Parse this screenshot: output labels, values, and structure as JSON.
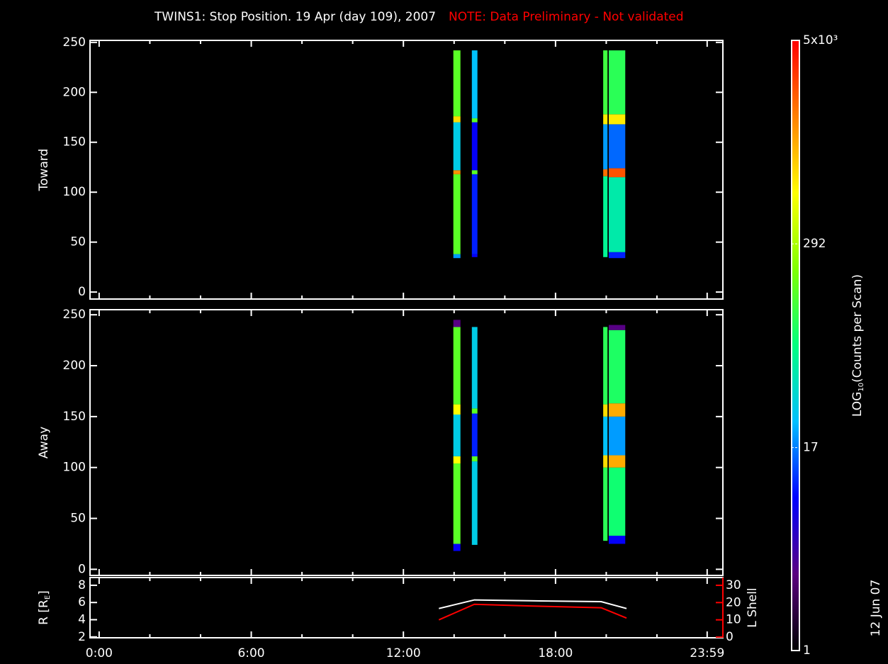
{
  "chart_data": [
    {
      "type": "heatmap",
      "title": "TWINS1: Stop Position. 19 Apr (day 109), 2007",
      "note": "NOTE: Data Preliminary - Not validated",
      "note_color": "#ff0000",
      "ylabel": "Toward",
      "xlim": [
        -0.36,
        24.6
      ],
      "ylim": [
        -7,
        252
      ],
      "yticks": [
        0,
        50,
        100,
        150,
        200,
        250
      ],
      "columns": [
        {
          "x": [
            13.97,
            14.25
          ],
          "cells": [
            {
              "y": [
                34,
                38
              ],
              "value": 20
            },
            {
              "y": [
                38,
                118
              ],
              "value": 150
            },
            {
              "y": [
                118,
                122
              ],
              "value": 1500
            },
            {
              "y": [
                122,
                170
              ],
              "value": 30
            },
            {
              "y": [
                170,
                176
              ],
              "value": 800
            },
            {
              "y": [
                176,
                242
              ],
              "value": 150
            }
          ]
        },
        {
          "x": [
            14.7,
            14.92
          ],
          "cells": [
            {
              "y": [
                35,
                38
              ],
              "value": 8
            },
            {
              "y": [
                38,
                118
              ],
              "value": 10
            },
            {
              "y": [
                118,
                122
              ],
              "value": 150
            },
            {
              "y": [
                122,
                170
              ],
              "value": 8
            },
            {
              "y": [
                170,
                174
              ],
              "value": 150
            },
            {
              "y": [
                174,
                242
              ],
              "value": 25
            }
          ]
        },
        {
          "x": [
            19.88,
            20.05
          ],
          "cells": [
            {
              "y": [
                35,
                116
              ],
              "value": 60
            },
            {
              "y": [
                116,
                123
              ],
              "value": 2000
            },
            {
              "y": [
                123,
                168
              ],
              "value": 20
            },
            {
              "y": [
                168,
                178
              ],
              "value": 700
            },
            {
              "y": [
                178,
                242
              ],
              "value": 120
            }
          ]
        },
        {
          "x": [
            20.1,
            20.75
          ],
          "cells": [
            {
              "y": [
                34,
                40
              ],
              "value": 10
            },
            {
              "y": [
                40,
                115
              ],
              "value": 50
            },
            {
              "y": [
                115,
                124
              ],
              "value": 2500
            },
            {
              "y": [
                124,
                168
              ],
              "value": 15
            },
            {
              "y": [
                168,
                178
              ],
              "value": 700
            },
            {
              "y": [
                178,
                242
              ],
              "value": 100
            }
          ]
        }
      ]
    },
    {
      "type": "heatmap",
      "ylabel": "Away",
      "xlim": [
        -0.36,
        24.6
      ],
      "ylim": [
        -6,
        255
      ],
      "yticks": [
        0,
        50,
        100,
        150,
        200,
        250
      ],
      "columns": [
        {
          "x": [
            13.97,
            14.25
          ],
          "cells": [
            {
              "y": [
                18,
                25
              ],
              "value": 8
            },
            {
              "y": [
                25,
                104
              ],
              "value": 150
            },
            {
              "y": [
                104,
                111
              ],
              "value": 600
            },
            {
              "y": [
                111,
                152
              ],
              "value": 30
            },
            {
              "y": [
                152,
                162
              ],
              "value": 600
            },
            {
              "y": [
                162,
                238
              ],
              "value": 150
            },
            {
              "y": [
                238,
                245
              ],
              "value": 3
            }
          ]
        },
        {
          "x": [
            14.7,
            14.92
          ],
          "cells": [
            {
              "y": [
                24,
                106
              ],
              "value": 30
            },
            {
              "y": [
                106,
                111
              ],
              "value": 150
            },
            {
              "y": [
                111,
                153
              ],
              "value": 10
            },
            {
              "y": [
                153,
                158
              ],
              "value": 150
            },
            {
              "y": [
                158,
                238
              ],
              "value": 30
            }
          ]
        },
        {
          "x": [
            19.88,
            20.05
          ],
          "cells": [
            {
              "y": [
                28,
                100
              ],
              "value": 100
            },
            {
              "y": [
                100,
                112
              ],
              "value": 800
            },
            {
              "y": [
                112,
                150
              ],
              "value": 25
            },
            {
              "y": [
                150,
                162
              ],
              "value": 800
            },
            {
              "y": [
                162,
                238
              ],
              "value": 100
            }
          ]
        },
        {
          "x": [
            20.1,
            20.75
          ],
          "cells": [
            {
              "y": [
                25,
                33
              ],
              "value": 8
            },
            {
              "y": [
                33,
                100
              ],
              "value": 80
            },
            {
              "y": [
                100,
                112
              ],
              "value": 1200
            },
            {
              "y": [
                112,
                150
              ],
              "value": 20
            },
            {
              "y": [
                150,
                163
              ],
              "value": 1200
            },
            {
              "y": [
                163,
                235
              ],
              "value": 90
            },
            {
              "y": [
                235,
                240
              ],
              "value": 3
            }
          ]
        }
      ]
    },
    {
      "type": "line",
      "ylabel_parts": [
        "R [R",
        "E",
        "]"
      ],
      "y2label": "L Shell",
      "y2color": "#ff0000",
      "date_stamp": "12 Jun 07",
      "xlim": [
        -0.36,
        24.6
      ],
      "xticks": [
        {
          "value": 0,
          "label": "0:00"
        },
        {
          "value": 6,
          "label": "6:00"
        },
        {
          "value": 12,
          "label": "12:00"
        },
        {
          "value": 18,
          "label": "18:00"
        },
        {
          "value": 23.98,
          "label": "23:59"
        }
      ],
      "xminorticks": [
        2,
        4,
        8,
        10,
        14,
        16,
        20,
        22
      ],
      "ylim": [
        1.9,
        8.9
      ],
      "yticks": [
        2,
        4,
        6,
        8
      ],
      "y2lim": [
        -0.4,
        34.5
      ],
      "y2ticks": [
        0,
        10,
        20,
        30
      ],
      "x": [
        13.4,
        14.8,
        17,
        19.8,
        20.8
      ],
      "series": [
        {
          "color": "#ffffff",
          "values": [
            5.3,
            6.3,
            6.2,
            6.1,
            5.3
          ]
        },
        {
          "color": "#ff0000",
          "axis": "y2",
          "values": [
            10,
            19,
            18,
            17,
            11
          ]
        }
      ]
    },
    {
      "type": "colorbar",
      "label_parts": [
        "LOG",
        "10",
        "(Counts per Scan)"
      ],
      "ylim": [
        1,
        5000
      ],
      "log": true,
      "yticks": [
        1,
        17,
        292,
        {
          "value": 5000,
          "label": "5x10³"
        }
      ],
      "colormap": [
        "#000000",
        "#5a0080",
        "#0000ff",
        "#00c0ff",
        "#00ff80",
        "#80ff00",
        "#ffff00",
        "#ff8000",
        "#ff0000"
      ]
    }
  ]
}
